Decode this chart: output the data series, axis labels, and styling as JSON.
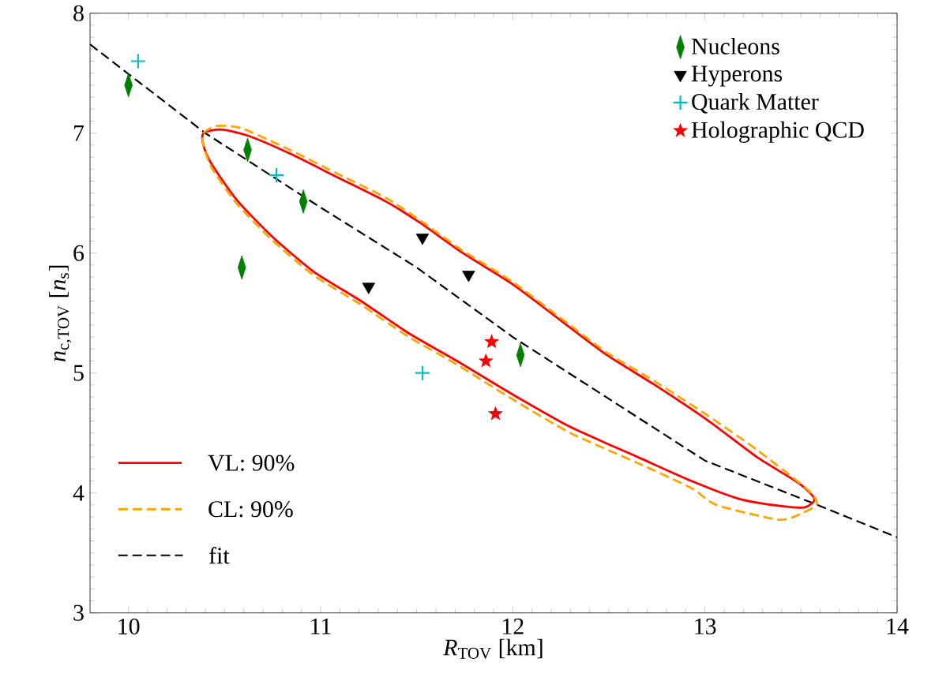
{
  "chart_data": {
    "type": "scatter",
    "xlabel": "*R*$_{TOV}$ [km]",
    "ylabel": "*n*$_{c,TOV}$ [*n*$_{s}$]",
    "xlim": [
      9.8,
      14
    ],
    "ylim": [
      3,
      8
    ],
    "annotations": [
      "VL: 90%",
      "CL: 90%"
    ],
    "xticks": [
      10,
      11,
      12,
      13,
      14
    ],
    "yticks": [
      3,
      4,
      5,
      6,
      7,
      8
    ],
    "legend": "top right",
    "grid": false,
    "series": [
      {
        "name": "Nucleons",
        "marker": "diamond",
        "color": "#008000",
        "x": [
          10.0,
          10.62,
          10.91,
          10.59,
          12.04
        ],
        "values": [
          7.4,
          6.86,
          6.43,
          5.88,
          5.15
        ]
      },
      {
        "name": "Hyperons",
        "marker": "triangle",
        "color": "#000000",
        "x": [
          11.53,
          11.25,
          11.77
        ],
        "values": [
          6.13,
          5.72,
          5.82
        ]
      },
      {
        "name": "Quark Matter",
        "marker": "cross",
        "color": "#00bfbf",
        "x": [
          10.05,
          10.77,
          11.53
        ],
        "values": [
          7.6,
          6.65,
          5.0
        ]
      },
      {
        "name": "Holographic QCD",
        "marker": "star",
        "color": "#ff0000",
        "x": [
          11.89,
          11.86,
          11.91
        ],
        "values": [
          5.26,
          5.1,
          4.66
        ]
      },
      {
        "name": "fit",
        "type": "line",
        "line_style": "dashed",
        "color": "#000000",
        "x": [
          9.8,
          10.4,
          11.0,
          11.5,
          12.0,
          13.0,
          13.57,
          14.0
        ],
        "values": [
          7.74,
          7.0,
          6.38,
          5.88,
          5.3,
          4.27,
          3.91,
          3.63
        ]
      }
    ]
  }
}
